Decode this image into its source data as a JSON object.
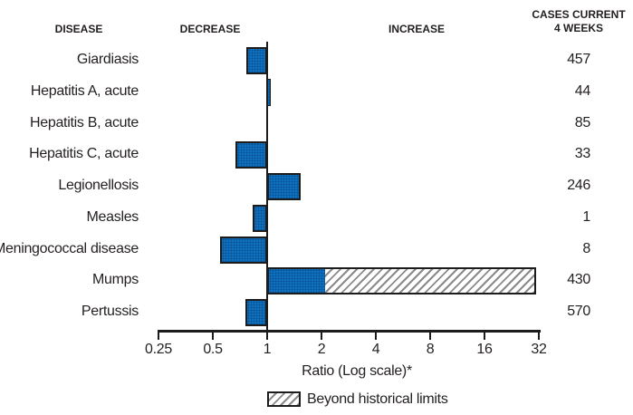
{
  "colors": {
    "bar_fill": "#0f70bf",
    "bar_border": "#1c1c1c",
    "hatch_line": "#8a8a8a",
    "text": "#231f20",
    "background": "#ffffff"
  },
  "chart_data": {
    "type": "bar",
    "orientation": "horizontal",
    "x_scale": "log2",
    "baseline_ratio": 1,
    "xlim": [
      0.25,
      32
    ],
    "x_ticks": [
      0.25,
      0.5,
      1,
      2,
      4,
      8,
      16,
      32
    ],
    "x_tick_labels": [
      "0.25",
      "0.5",
      "1",
      "2",
      "4",
      "8",
      "16",
      "32"
    ],
    "xlabel": "Ratio (Log scale)*",
    "grid": false,
    "column_headers": {
      "disease": "DISEASE",
      "decrease": "DECREASE",
      "increase": "INCREASE",
      "cases_line1": "CASES CURRENT",
      "cases_line2": "4 WEEKS"
    },
    "legend": [
      {
        "label": "Beyond historical limits",
        "style": "hatched"
      }
    ],
    "rows": [
      {
        "disease": "Giardiasis",
        "ratio": 0.77,
        "cases": 457
      },
      {
        "disease": "Hepatitis A, acute",
        "ratio": 1.05,
        "cases": 44
      },
      {
        "disease": "Hepatitis B, acute",
        "ratio": 1.0,
        "cases": 85
      },
      {
        "disease": "Hepatitis C, acute",
        "ratio": 0.67,
        "cases": 33
      },
      {
        "disease": "Legionellosis",
        "ratio": 1.53,
        "cases": 246
      },
      {
        "disease": "Measles",
        "ratio": 0.83,
        "cases": 1
      },
      {
        "disease": "Meningococcal disease",
        "ratio": 0.55,
        "cases": 8
      },
      {
        "disease": "Mumps",
        "ratio": 2.1,
        "beyond_historical_ratio": 31,
        "cases": 430
      },
      {
        "disease": "Pertussis",
        "ratio": 0.76,
        "cases": 570
      }
    ]
  }
}
